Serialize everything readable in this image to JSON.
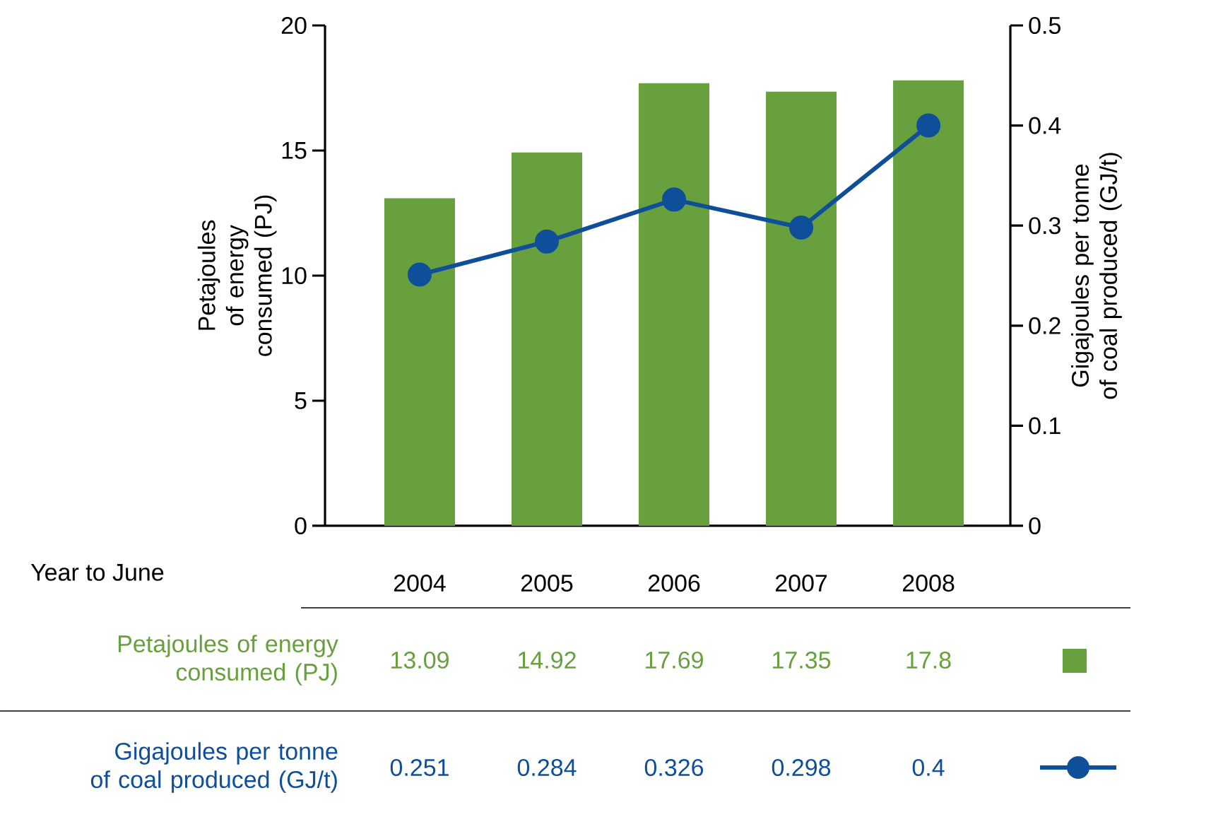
{
  "chart_data": {
    "type": "bar",
    "xlabel": "Year to June",
    "ylabel": "Petajoules of energy consumed (PJ)",
    "y2label": "Gigajoules per tonne of coal produced (GJ/t)",
    "categories": [
      "2004",
      "2005",
      "2006",
      "2007",
      "2008"
    ],
    "series": [
      {
        "name": "Petajoules of energy consumed (PJ)",
        "color": "#68a03e",
        "values": [
          13.09,
          14.92,
          17.69,
          17.35,
          17.8
        ]
      },
      {
        "name": "Gigajoules per tonne of coal produced (GJ/t)",
        "type": "line",
        "axis": "y2",
        "marker": "circle",
        "color": "#0f4f99",
        "values": [
          0.251,
          0.284,
          0.326,
          0.298,
          0.4
        ]
      }
    ],
    "ylim": [
      0,
      20
    ],
    "yticks": [
      0,
      5,
      10,
      15,
      20
    ],
    "y2lim": [
      0,
      0.5
    ],
    "y2ticks": [
      0,
      0.1,
      0.2,
      0.3,
      0.4,
      0.5
    ],
    "data_labels": true,
    "legend": "bottom"
  }
}
